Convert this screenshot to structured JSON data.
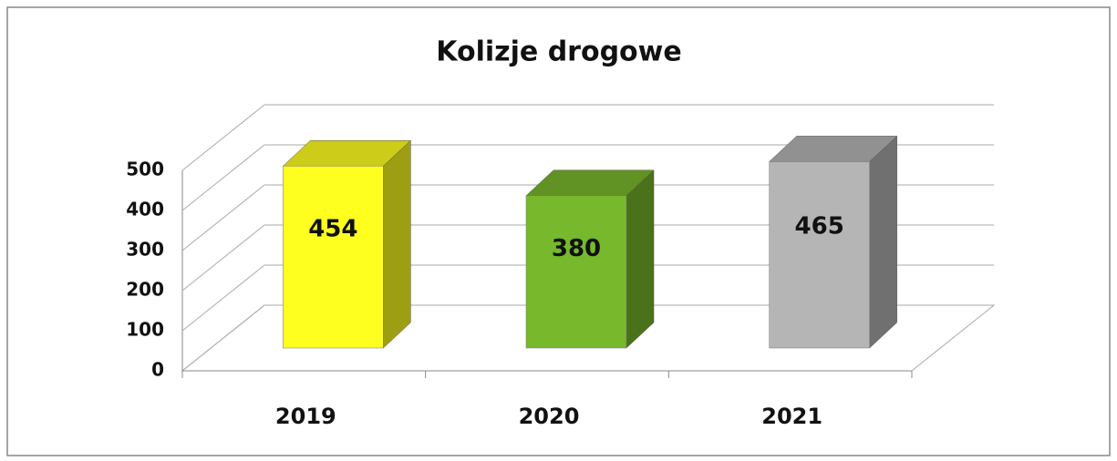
{
  "chart_data": {
    "type": "bar3d",
    "title": "Kolizje drogowe",
    "categories": [
      "2019",
      "2020",
      "2021"
    ],
    "values": [
      454,
      380,
      465
    ],
    "colors": [
      "#ffff1f",
      "#78b82c",
      "#b5b5b5"
    ],
    "ylim": [
      0,
      500
    ],
    "yticks": [
      0,
      100,
      200,
      300,
      400,
      500
    ],
    "grid": true
  }
}
